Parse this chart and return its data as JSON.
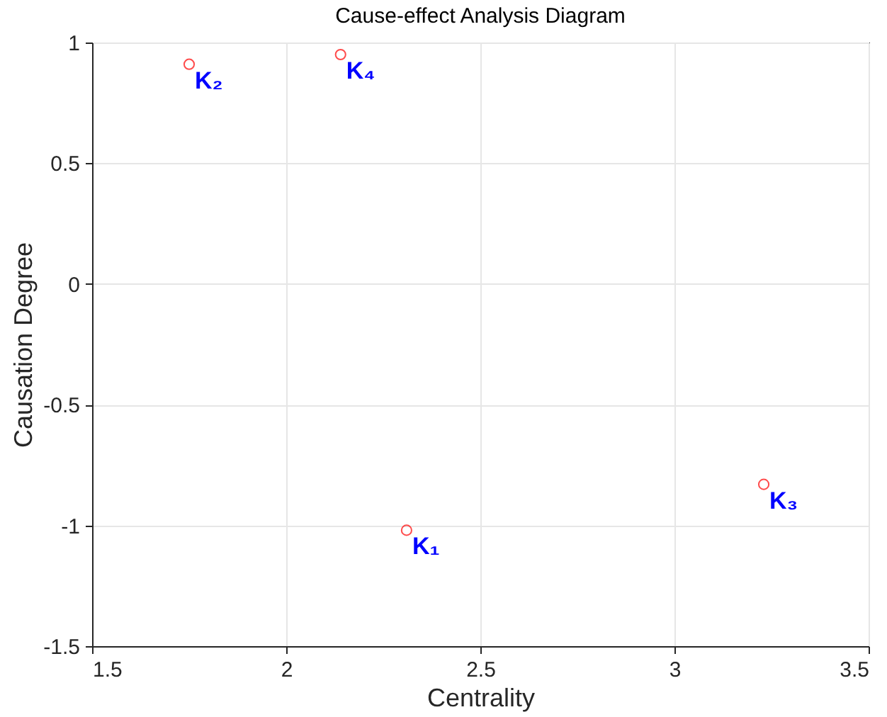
{
  "chart_data": {
    "type": "scatter",
    "title": "Cause-effect Analysis Diagram",
    "xlabel": "Centrality",
    "ylabel": "Causation Degree",
    "x": [
      2.31,
      1.75,
      3.23,
      2.14
    ],
    "series": [
      {
        "color": "#ff0000",
        "values": [
          -1.02,
          0.91,
          -0.83,
          0.95
        ]
      }
    ],
    "annotations": [
      {
        "text": "K₁",
        "x": 2.31,
        "y": -1.02
      },
      {
        "text": "K₂",
        "x": 1.75,
        "y": 0.91
      },
      {
        "text": "K₃",
        "x": 3.23,
        "y": -0.83
      },
      {
        "text": "K₄",
        "x": 2.14,
        "y": 0.95
      }
    ],
    "xlim": [
      1.5,
      3.5
    ],
    "xticks": [
      1.5,
      2,
      2.5,
      3,
      3.5
    ],
    "ylim": [
      -1.5,
      1
    ],
    "yticks": [
      -1.5,
      -1,
      -0.5,
      0,
      0.5,
      1
    ],
    "grid": true,
    "marker": "circle"
  }
}
